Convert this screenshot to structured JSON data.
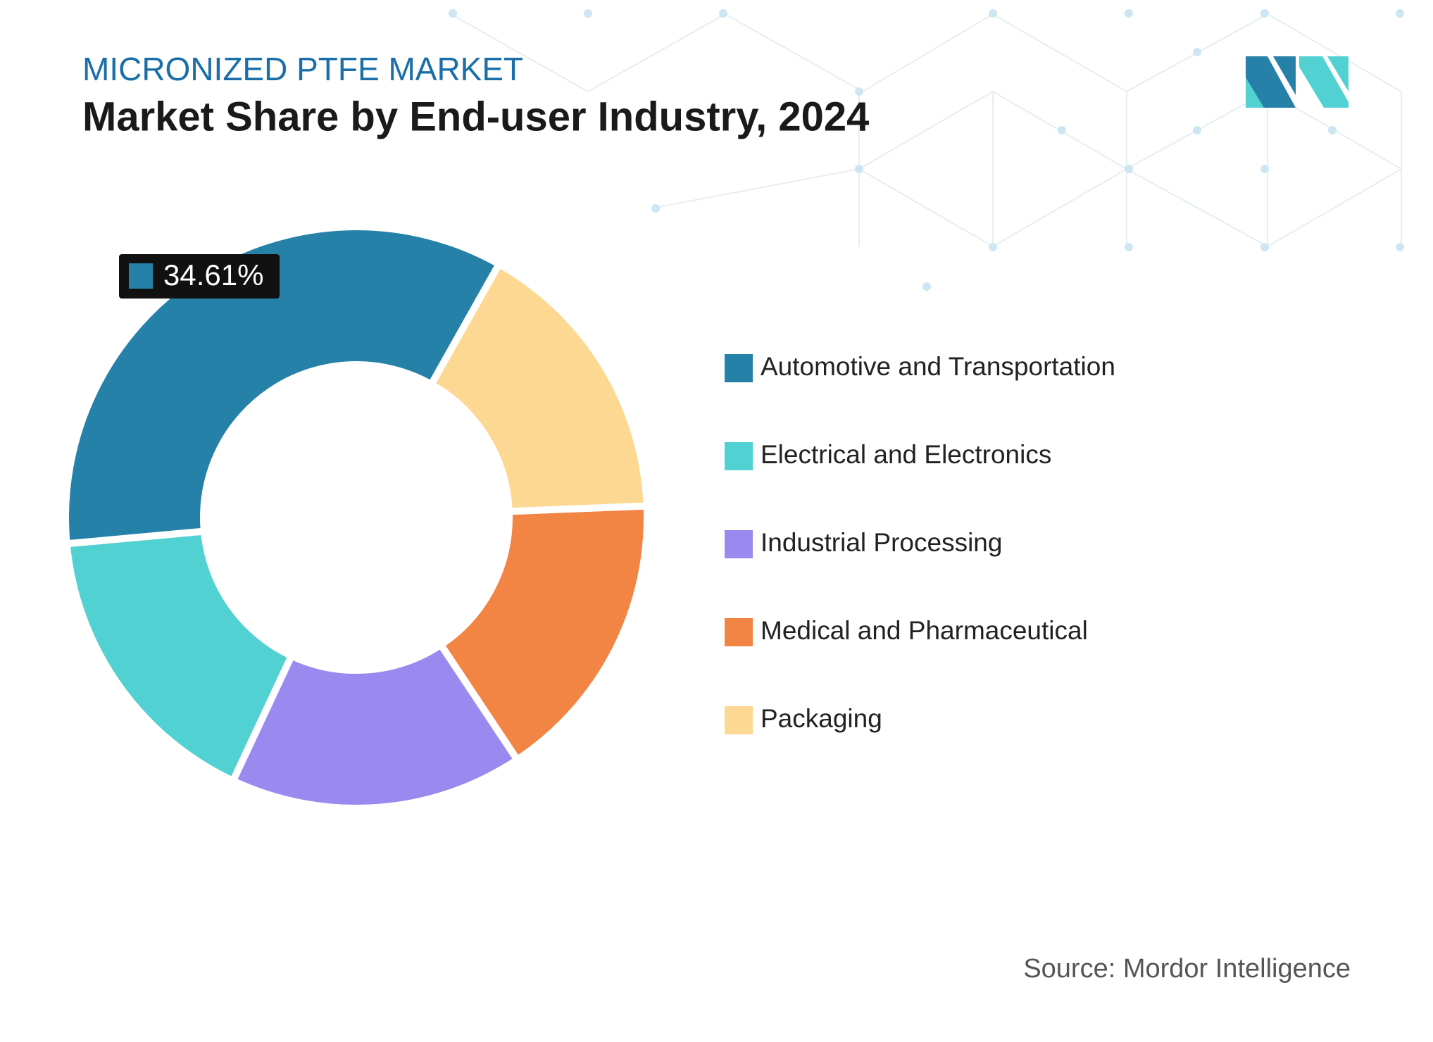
{
  "chart_data": {
    "type": "donut",
    "subtitle": "MICRONIZED PTFE MARKET",
    "title": "Market Share by End-user Industry, 2024",
    "categories": [
      "Automotive and Transportation",
      "Electrical and Electronics",
      "Industrial Processing",
      "Medical and Pharmaceutical",
      "Packaging"
    ],
    "values": [
      34.61,
      16.59,
      16.3,
      16.3,
      16.2
    ],
    "value_labels": [
      "34.61%",
      null,
      null,
      null,
      null
    ],
    "colors": [
      "#2581a8",
      "#52d1d2",
      "#9a8af0",
      "#f28444",
      "#fdd892"
    ],
    "source": "Source: Mordor Intelligence"
  }
}
